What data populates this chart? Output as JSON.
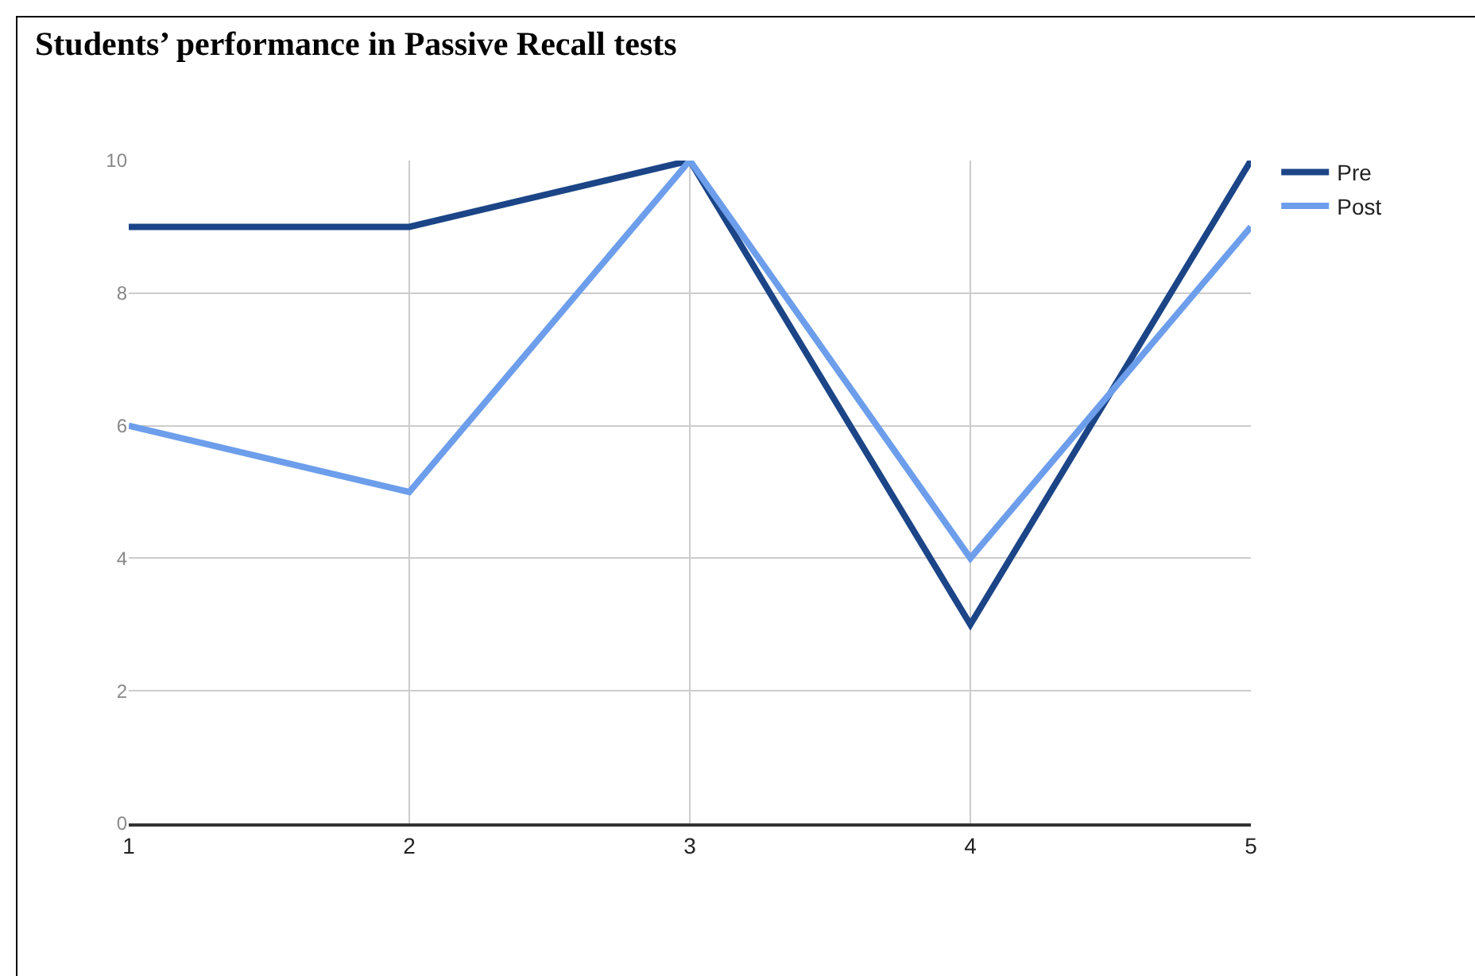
{
  "chart_data": {
    "type": "line",
    "title": "Students’ performance in Passive Recall tests",
    "x": [
      1,
      2,
      3,
      4,
      5
    ],
    "series": [
      {
        "name": "Pre",
        "color": "#1c4587",
        "values": [
          9,
          9,
          10,
          3,
          10
        ]
      },
      {
        "name": "Post",
        "color": "#6d9eeb",
        "values": [
          6,
          5,
          10,
          4,
          9
        ]
      }
    ],
    "xlim": [
      1,
      5
    ],
    "xticks": [
      1,
      2,
      3,
      4,
      5
    ],
    "ylim": [
      0,
      10
    ],
    "yticks": [
      0,
      2,
      4,
      6,
      8,
      10
    ],
    "grid": true,
    "legend": "top right",
    "marker": "none",
    "line_style": "solid"
  }
}
